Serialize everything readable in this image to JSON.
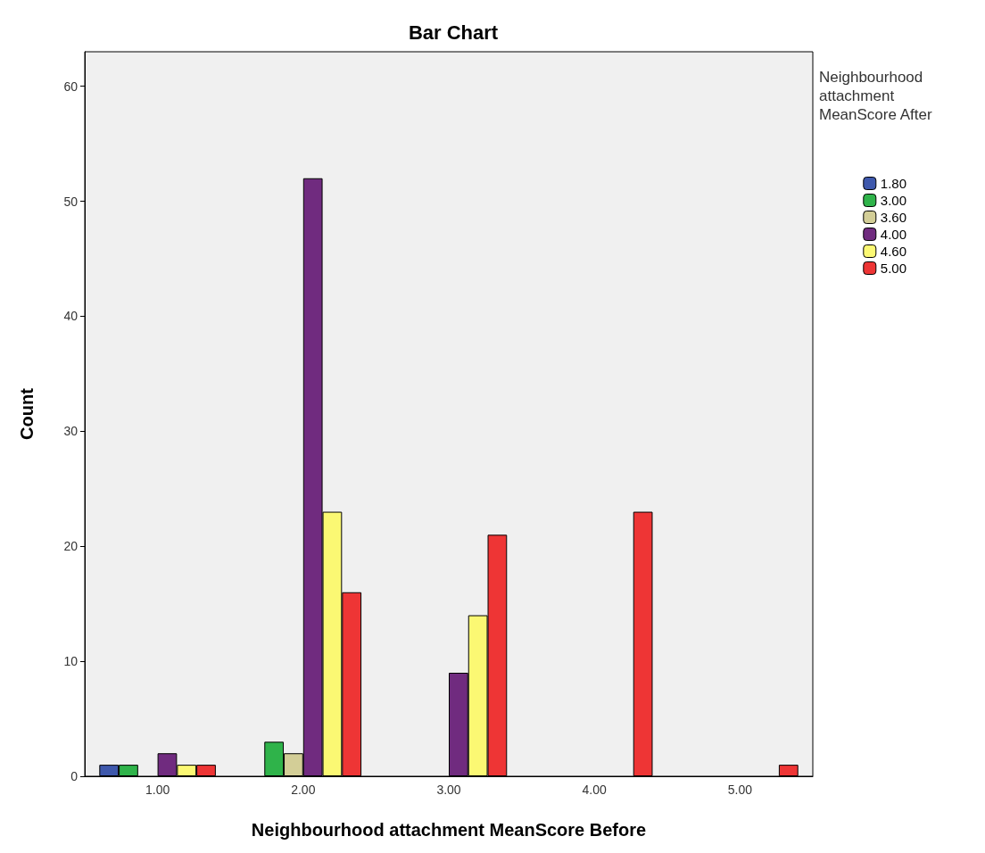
{
  "chart_data": {
    "type": "bar",
    "title": "Bar Chart",
    "xlabel": "Neighbourhood attachment MeanScore Before",
    "ylabel": "Count",
    "legend_title": "Neighbourhood attachment MeanScore After",
    "categories": [
      "1.00",
      "2.00",
      "3.00",
      "4.00",
      "5.00"
    ],
    "series": [
      {
        "name": "1.80",
        "color": "#3e58ac",
        "values": [
          1,
          null,
          null,
          null,
          null
        ]
      },
      {
        "name": "3.00",
        "color": "#2fb34a",
        "values": [
          1,
          3,
          null,
          null,
          null
        ]
      },
      {
        "name": "3.60",
        "color": "#d3ce97",
        "values": [
          null,
          2,
          null,
          null,
          null
        ]
      },
      {
        "name": "4.00",
        "color": "#702b7f",
        "values": [
          2,
          52,
          9,
          null,
          null
        ]
      },
      {
        "name": "4.60",
        "color": "#fbf873",
        "values": [
          1,
          23,
          14,
          null,
          null
        ]
      },
      {
        "name": "5.00",
        "color": "#ee3535",
        "values": [
          1,
          16,
          21,
          23,
          1
        ]
      }
    ],
    "ylim": [
      0,
      63
    ],
    "yticks": [
      0,
      10,
      20,
      30,
      40,
      50,
      60
    ],
    "grid": false,
    "legend": "right"
  }
}
